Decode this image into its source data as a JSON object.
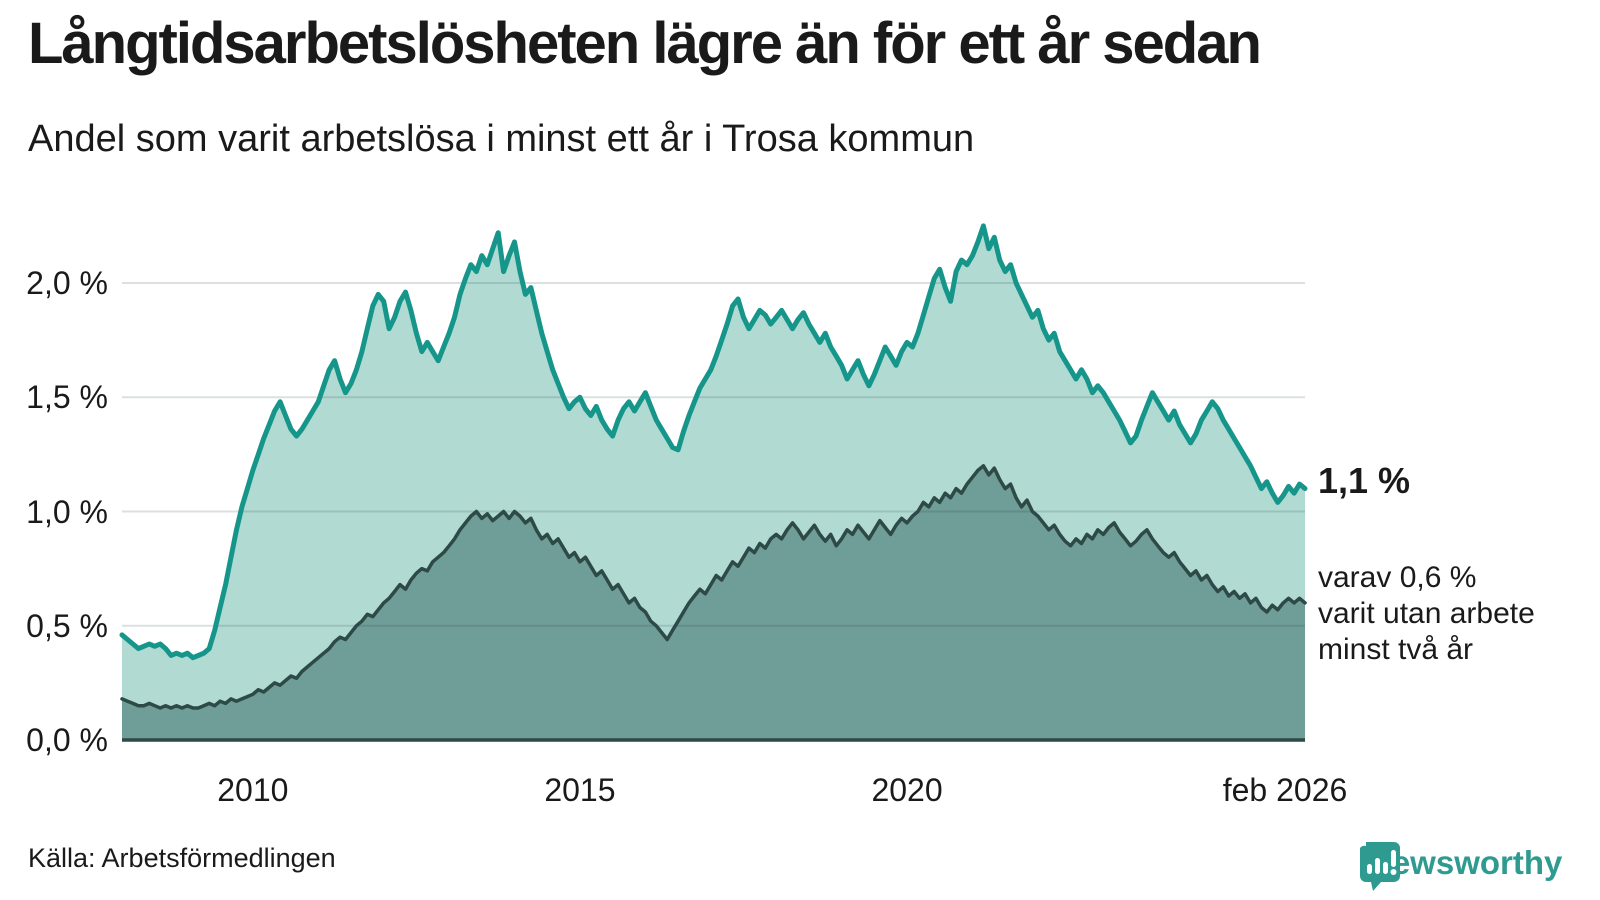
{
  "title": "Långtidsarbetslösheten lägre än för ett år sedan",
  "subtitle": "Andel som varit arbetslösa i minst ett år i Trosa kommun",
  "source": "Källa: Arbetsförmedlingen",
  "logo": {
    "text": "Newsworthy",
    "icon": "newsworthy-speech-bubble-chart-icon",
    "color": "#2f9b90"
  },
  "annotations": {
    "end_value_label": "1,1 %",
    "secondary_lines": [
      "varav 0,6 %",
      "varit utan arbete",
      "minst två år"
    ]
  },
  "colors": {
    "one_year_line": "#16968a",
    "one_year_fill": "#b1dad3",
    "two_years_line": "#2d4a47",
    "two_years_fill": "#6f9d98",
    "axis": "#2d4a47",
    "gridline": "rgba(40,60,60,0.16)",
    "text": "#1a1a1a"
  },
  "chart_data": {
    "type": "area",
    "title": "Andel som varit arbetslösa i minst ett år i Trosa kommun",
    "x_start": "2008-01",
    "x_end": "2026-02",
    "x_unit": "month",
    "ylim": [
      0,
      2.35
    ],
    "grid": "horizontal",
    "y_ticks": [
      {
        "value": 0.0,
        "label": "0,0 %"
      },
      {
        "value": 0.5,
        "label": "0,5 %"
      },
      {
        "value": 1.0,
        "label": "1,0 %"
      },
      {
        "value": 1.5,
        "label": "1,5 %"
      },
      {
        "value": 2.0,
        "label": "2,0 %"
      }
    ],
    "x_ticks": [
      {
        "month_index": 24,
        "label": "2010"
      },
      {
        "month_index": 84,
        "label": "2015"
      },
      {
        "month_index": 144,
        "label": "2020"
      },
      {
        "month_index": 217,
        "label": "feb 2026"
      }
    ],
    "end_values": {
      "one_year": 1.1,
      "two_years": 0.6
    },
    "series": [
      {
        "name": "Arbetslösa minst ett år",
        "values": [
          0.46,
          0.44,
          0.42,
          0.4,
          0.41,
          0.42,
          0.41,
          0.42,
          0.4,
          0.37,
          0.38,
          0.37,
          0.38,
          0.36,
          0.37,
          0.38,
          0.4,
          0.48,
          0.58,
          0.68,
          0.8,
          0.92,
          1.02,
          1.1,
          1.18,
          1.25,
          1.32,
          1.38,
          1.44,
          1.48,
          1.42,
          1.36,
          1.33,
          1.36,
          1.4,
          1.44,
          1.48,
          1.55,
          1.62,
          1.66,
          1.58,
          1.52,
          1.56,
          1.62,
          1.7,
          1.8,
          1.9,
          1.95,
          1.92,
          1.8,
          1.85,
          1.92,
          1.96,
          1.88,
          1.78,
          1.7,
          1.74,
          1.7,
          1.66,
          1.72,
          1.78,
          1.85,
          1.95,
          2.02,
          2.08,
          2.05,
          2.12,
          2.08,
          2.15,
          2.22,
          2.05,
          2.12,
          2.18,
          2.05,
          1.95,
          1.98,
          1.88,
          1.78,
          1.7,
          1.62,
          1.56,
          1.5,
          1.45,
          1.48,
          1.5,
          1.45,
          1.42,
          1.46,
          1.4,
          1.36,
          1.33,
          1.4,
          1.45,
          1.48,
          1.44,
          1.48,
          1.52,
          1.46,
          1.4,
          1.36,
          1.32,
          1.28,
          1.27,
          1.35,
          1.42,
          1.48,
          1.54,
          1.58,
          1.62,
          1.68,
          1.75,
          1.82,
          1.9,
          1.93,
          1.85,
          1.8,
          1.84,
          1.88,
          1.86,
          1.82,
          1.85,
          1.88,
          1.84,
          1.8,
          1.84,
          1.87,
          1.82,
          1.78,
          1.74,
          1.78,
          1.72,
          1.68,
          1.64,
          1.58,
          1.62,
          1.66,
          1.6,
          1.55,
          1.6,
          1.66,
          1.72,
          1.68,
          1.64,
          1.7,
          1.74,
          1.72,
          1.78,
          1.86,
          1.94,
          2.02,
          2.06,
          1.98,
          1.92,
          2.05,
          2.1,
          2.08,
          2.12,
          2.18,
          2.25,
          2.15,
          2.2,
          2.1,
          2.05,
          2.08,
          2.0,
          1.95,
          1.9,
          1.85,
          1.88,
          1.8,
          1.75,
          1.78,
          1.7,
          1.66,
          1.62,
          1.58,
          1.62,
          1.58,
          1.52,
          1.55,
          1.52,
          1.48,
          1.44,
          1.4,
          1.35,
          1.3,
          1.33,
          1.4,
          1.46,
          1.52,
          1.48,
          1.44,
          1.4,
          1.44,
          1.38,
          1.34,
          1.3,
          1.34,
          1.4,
          1.44,
          1.48,
          1.45,
          1.4,
          1.36,
          1.32,
          1.28,
          1.24,
          1.2,
          1.15,
          1.1,
          1.13,
          1.08,
          1.04,
          1.07,
          1.11,
          1.08,
          1.12,
          1.1
        ]
      },
      {
        "name": "varav arbetslösa minst två år",
        "values": [
          0.18,
          0.17,
          0.16,
          0.15,
          0.15,
          0.16,
          0.15,
          0.14,
          0.15,
          0.14,
          0.15,
          0.14,
          0.15,
          0.14,
          0.14,
          0.15,
          0.16,
          0.15,
          0.17,
          0.16,
          0.18,
          0.17,
          0.18,
          0.19,
          0.2,
          0.22,
          0.21,
          0.23,
          0.25,
          0.24,
          0.26,
          0.28,
          0.27,
          0.3,
          0.32,
          0.34,
          0.36,
          0.38,
          0.4,
          0.43,
          0.45,
          0.44,
          0.47,
          0.5,
          0.52,
          0.55,
          0.54,
          0.57,
          0.6,
          0.62,
          0.65,
          0.68,
          0.66,
          0.7,
          0.73,
          0.75,
          0.74,
          0.78,
          0.8,
          0.82,
          0.85,
          0.88,
          0.92,
          0.95,
          0.98,
          1.0,
          0.97,
          0.99,
          0.96,
          0.98,
          1.0,
          0.97,
          1.0,
          0.98,
          0.95,
          0.97,
          0.92,
          0.88,
          0.9,
          0.86,
          0.88,
          0.84,
          0.8,
          0.82,
          0.78,
          0.8,
          0.76,
          0.72,
          0.74,
          0.7,
          0.66,
          0.68,
          0.64,
          0.6,
          0.62,
          0.58,
          0.56,
          0.52,
          0.5,
          0.47,
          0.44,
          0.48,
          0.52,
          0.56,
          0.6,
          0.63,
          0.66,
          0.64,
          0.68,
          0.72,
          0.7,
          0.74,
          0.78,
          0.76,
          0.8,
          0.84,
          0.82,
          0.86,
          0.84,
          0.88,
          0.9,
          0.88,
          0.92,
          0.95,
          0.92,
          0.88,
          0.91,
          0.94,
          0.9,
          0.87,
          0.9,
          0.85,
          0.88,
          0.92,
          0.9,
          0.94,
          0.91,
          0.88,
          0.92,
          0.96,
          0.93,
          0.9,
          0.94,
          0.97,
          0.95,
          0.98,
          1.0,
          1.04,
          1.02,
          1.06,
          1.04,
          1.08,
          1.06,
          1.1,
          1.08,
          1.12,
          1.15,
          1.18,
          1.2,
          1.16,
          1.19,
          1.14,
          1.1,
          1.12,
          1.06,
          1.02,
          1.05,
          1.0,
          0.98,
          0.95,
          0.92,
          0.94,
          0.9,
          0.87,
          0.85,
          0.88,
          0.86,
          0.9,
          0.88,
          0.92,
          0.9,
          0.93,
          0.95,
          0.91,
          0.88,
          0.85,
          0.87,
          0.9,
          0.92,
          0.88,
          0.85,
          0.82,
          0.8,
          0.82,
          0.78,
          0.75,
          0.72,
          0.74,
          0.7,
          0.72,
          0.68,
          0.65,
          0.67,
          0.63,
          0.65,
          0.62,
          0.64,
          0.6,
          0.62,
          0.58,
          0.56,
          0.59,
          0.57,
          0.6,
          0.62,
          0.6,
          0.62,
          0.6
        ]
      }
    ]
  }
}
